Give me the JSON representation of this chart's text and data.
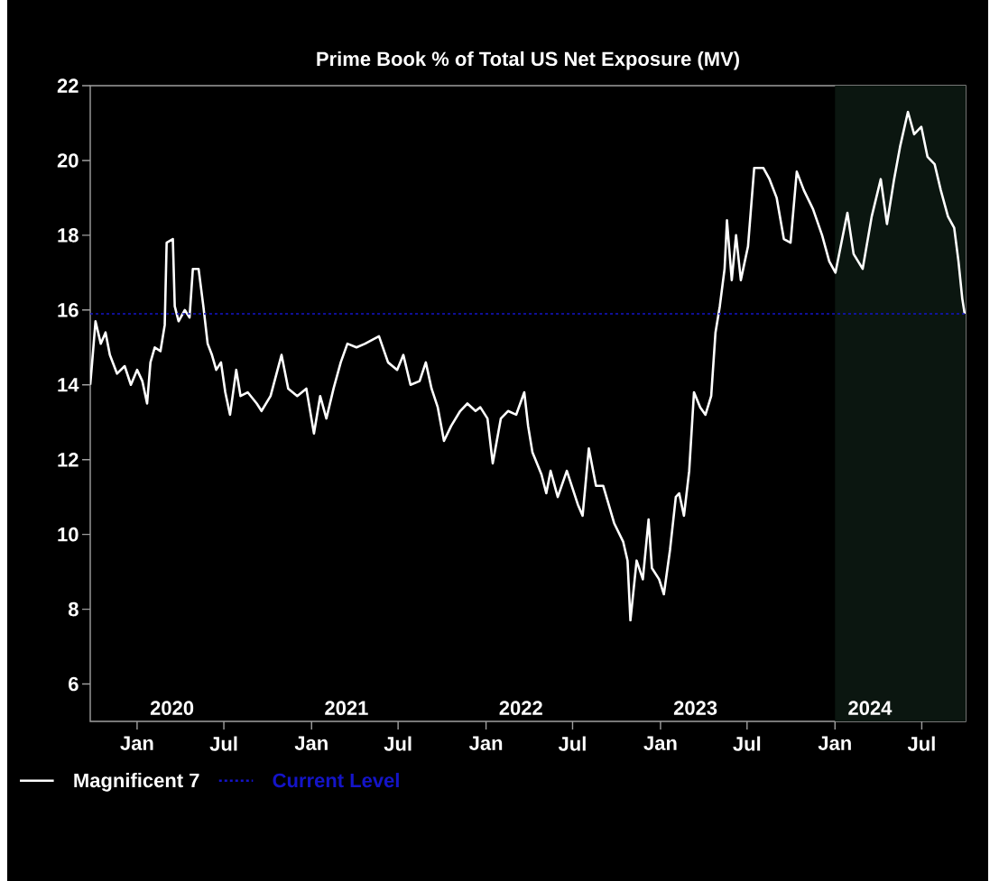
{
  "chart_data": {
    "type": "line",
    "title": "Prime Book % of Total US Net Exposure (MV)",
    "x": [
      "2019-09-25",
      "2019-09-29",
      "2019-10-06",
      "2019-10-17",
      "2019-10-27",
      "2019-11-05",
      "2019-11-20",
      "2019-12-06",
      "2019-12-19",
      "2020-01-01",
      "2020-01-12",
      "2020-01-22",
      "2020-01-29",
      "2020-02-07",
      "2020-02-19",
      "2020-02-28",
      "2020-03-03",
      "2020-03-16",
      "2020-03-20",
      "2020-03-28",
      "2020-04-10",
      "2020-04-20",
      "2020-04-27",
      "2020-05-09",
      "2020-05-19",
      "2020-05-28",
      "2020-06-06",
      "2020-06-15",
      "2020-06-25",
      "2020-07-04",
      "2020-07-14",
      "2020-07-27",
      "2020-08-05",
      "2020-08-20",
      "2020-09-08",
      "2020-09-18",
      "2020-10-07",
      "2020-10-30",
      "2020-11-13",
      "2020-12-02",
      "2020-12-21",
      "2021-01-06",
      "2021-01-19",
      "2021-02-01",
      "2021-02-16",
      "2021-03-03",
      "2021-03-17",
      "2021-04-05",
      "2021-04-23",
      "2021-05-22",
      "2021-06-10",
      "2021-06-29",
      "2021-07-12",
      "2021-07-27",
      "2021-08-15",
      "2021-08-28",
      "2021-09-09",
      "2021-09-22",
      "2021-10-05",
      "2021-10-20",
      "2021-11-08",
      "2021-11-23",
      "2021-12-10",
      "2021-12-20",
      "2022-01-04",
      "2022-01-15",
      "2022-02-01",
      "2022-02-16",
      "2022-03-05",
      "2022-03-22",
      "2022-03-30",
      "2022-04-08",
      "2022-04-27",
      "2022-05-07",
      "2022-05-16",
      "2022-05-31",
      "2022-06-19",
      "2022-07-12",
      "2022-07-22",
      "2022-08-04",
      "2022-08-19",
      "2022-09-03",
      "2022-09-26",
      "2022-10-15",
      "2022-10-24",
      "2022-10-30",
      "2022-11-12",
      "2022-11-25",
      "2022-12-07",
      "2022-12-14",
      "2022-12-29",
      "2023-01-08",
      "2023-01-21",
      "2023-02-02",
      "2023-02-09",
      "2023-02-19",
      "2023-03-02",
      "2023-03-12",
      "2023-03-25",
      "2023-04-05",
      "2023-04-17",
      "2023-04-26",
      "2023-05-05",
      "2023-05-15",
      "2023-05-20",
      "2023-05-30",
      "2023-06-08",
      "2023-06-18",
      "2023-07-03",
      "2023-07-16",
      "2023-08-04",
      "2023-08-17",
      "2023-09-01",
      "2023-09-16",
      "2023-09-30",
      "2023-10-13",
      "2023-10-28",
      "2023-11-16",
      "2023-12-05",
      "2023-12-20",
      "2024-01-02",
      "2024-01-16",
      "2024-01-27",
      "2024-02-09",
      "2024-02-28",
      "2024-03-18",
      "2024-04-06",
      "2024-04-19",
      "2024-05-04",
      "2024-05-17",
      "2024-06-02",
      "2024-06-15",
      "2024-06-30",
      "2024-07-13",
      "2024-07-28",
      "2024-08-10",
      "2024-08-25",
      "2024-09-07",
      "2024-09-16",
      "2024-09-24",
      "2024-09-29"
    ],
    "series": [
      {
        "name": "Magnificent 7",
        "color": "#ffffff",
        "line_style": "solid",
        "values": [
          14.0,
          14.6,
          15.7,
          15.1,
          15.4,
          14.8,
          14.3,
          14.5,
          14.0,
          14.4,
          14.1,
          13.5,
          14.6,
          15.0,
          14.9,
          15.6,
          17.8,
          17.9,
          16.1,
          15.7,
          16.0,
          15.8,
          17.1,
          17.1,
          16.1,
          15.1,
          14.8,
          14.4,
          14.6,
          13.8,
          13.2,
          14.4,
          13.7,
          13.8,
          13.5,
          13.3,
          13.7,
          14.8,
          13.9,
          13.7,
          13.9,
          12.7,
          13.7,
          13.1,
          13.9,
          14.6,
          15.1,
          15.0,
          15.1,
          15.3,
          14.6,
          14.4,
          14.8,
          14.0,
          14.1,
          14.6,
          13.9,
          13.4,
          12.5,
          12.9,
          13.3,
          13.5,
          13.3,
          13.4,
          13.1,
          11.9,
          13.1,
          13.3,
          13.2,
          13.8,
          12.9,
          12.2,
          11.6,
          11.1,
          11.7,
          11.0,
          11.7,
          10.8,
          10.5,
          12.3,
          11.3,
          11.3,
          10.3,
          9.8,
          9.3,
          7.7,
          9.3,
          8.8,
          10.4,
          9.1,
          8.8,
          8.4,
          9.6,
          11.0,
          11.1,
          10.5,
          11.7,
          13.8,
          13.4,
          13.2,
          13.7,
          15.4,
          16.1,
          17.1,
          18.4,
          16.8,
          18.0,
          16.8,
          17.7,
          19.8,
          19.8,
          19.5,
          19.0,
          17.9,
          17.8,
          19.7,
          19.2,
          18.7,
          18.0,
          17.3,
          17.0,
          17.9,
          18.6,
          17.5,
          17.1,
          18.5,
          19.5,
          18.3,
          19.5,
          20.4,
          21.3,
          20.7,
          20.9,
          20.1,
          19.9,
          19.2,
          18.5,
          18.2,
          17.3,
          16.3,
          15.9
        ]
      }
    ],
    "xlim": [
      "2019-09-25",
      "2024-10-01"
    ],
    "xticks": [
      {
        "value": "2020-01-01",
        "label": "Jan"
      },
      {
        "value": "2020-07-01",
        "label": "Jul"
      },
      {
        "value": "2021-01-01",
        "label": "Jan"
      },
      {
        "value": "2021-07-01",
        "label": "Jul"
      },
      {
        "value": "2022-01-01",
        "label": "Jan"
      },
      {
        "value": "2022-07-01",
        "label": "Jul"
      },
      {
        "value": "2023-01-01",
        "label": "Jan"
      },
      {
        "value": "2023-07-01",
        "label": "Jul"
      },
      {
        "value": "2024-01-01",
        "label": "Jan"
      },
      {
        "value": "2024-07-01",
        "label": "Jul"
      }
    ],
    "ylim": [
      5,
      22
    ],
    "yticks": [
      6,
      8,
      10,
      12,
      14,
      16,
      18,
      20,
      22
    ],
    "ref_lines": [
      {
        "axis": "y",
        "value": 15.9,
        "label": "Current Level",
        "color": "#1414c8",
        "line_style": "dashed"
      }
    ],
    "bands": [
      {
        "axis": "x",
        "from": "2024-01-01",
        "to": "2024-10-01",
        "color": "#0b1610"
      }
    ],
    "annotations": [
      "2020",
      "2021",
      "2022",
      "2023",
      "2024"
    ],
    "legend": "bottom",
    "grid": false,
    "marker": "none"
  }
}
